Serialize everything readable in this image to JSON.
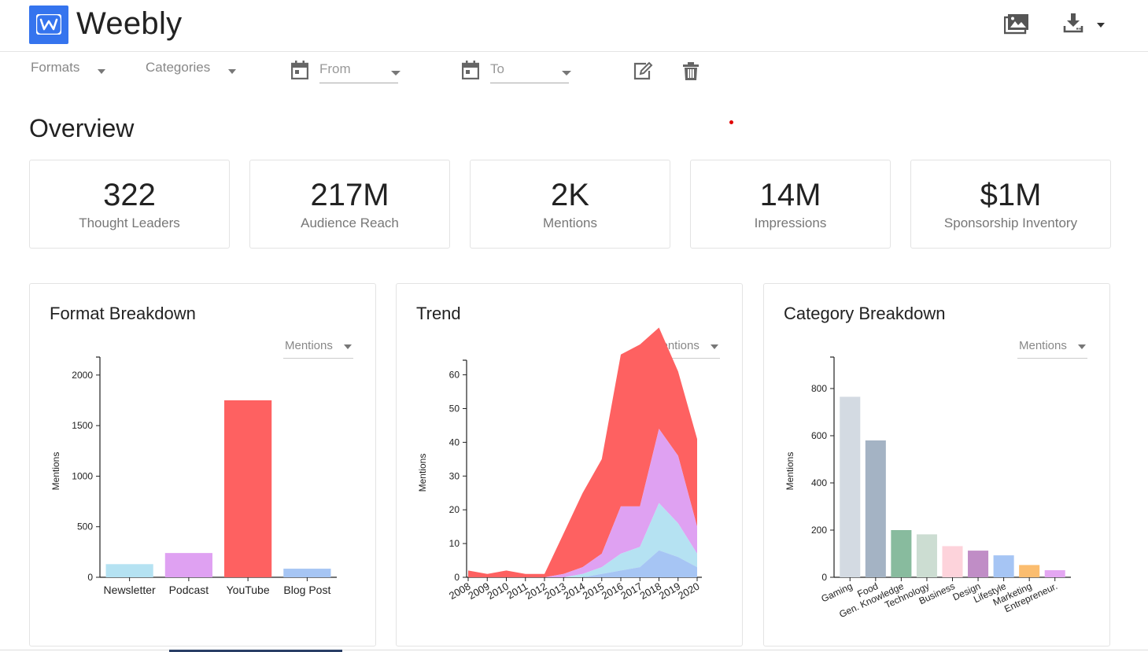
{
  "app": {
    "brand": "Weebly",
    "logo_letter": "W"
  },
  "header_icons": [
    "images-icon",
    "download-icon",
    "caret-down-icon"
  ],
  "filters": {
    "formats_label": "Formats",
    "categories_label": "Categories",
    "from_placeholder": "From",
    "to_placeholder": "To"
  },
  "overview": {
    "title": "Overview",
    "stats": [
      {
        "value": "322",
        "label": "Thought Leaders"
      },
      {
        "value": "217M",
        "label": "Audience Reach"
      },
      {
        "value": "2K",
        "label": "Mentions"
      },
      {
        "value": "14M",
        "label": "Impressions"
      },
      {
        "value": "$1M",
        "label": "Sponsorship Inventory"
      }
    ]
  },
  "panels": {
    "format": {
      "title": "Format Breakdown",
      "metric": "Mentions"
    },
    "trend": {
      "title": "Trend",
      "metric": "Mentions"
    },
    "category": {
      "title": "Category Breakdown",
      "metric": "Mentions"
    }
  },
  "chart_data": [
    {
      "type": "bar",
      "categories": [
        "Newsletter",
        "Podcast",
        "YouTube",
        "Blog Post"
      ],
      "values": [
        130,
        240,
        1750,
        85
      ],
      "colors": [
        "#b5e2f2",
        "#dfa1f2",
        "#fe6161",
        "#a6c5f4"
      ],
      "ylabel": "Mentions",
      "yticks": [
        0,
        500,
        1000,
        1500,
        2000
      ],
      "ylim": [
        0,
        2100
      ]
    },
    {
      "type": "area",
      "x": [
        "2008",
        "2009",
        "2010",
        "2011",
        "2012",
        "2013",
        "2014",
        "2015",
        "2016",
        "2017",
        "2018",
        "2019",
        "2020"
      ],
      "ylabel": "Mentions",
      "yticks": [
        0,
        10,
        20,
        30,
        40,
        50,
        60
      ],
      "ylim": [
        0,
        62
      ],
      "series": [
        {
          "color": "#fe6161",
          "values": [
            2,
            1,
            2,
            1,
            1,
            12,
            22,
            28,
            45,
            48,
            30,
            25,
            26
          ]
        },
        {
          "color": "#dfa1f2",
          "values": [
            0,
            0,
            0,
            0,
            0,
            1,
            2,
            4,
            14,
            12,
            22,
            20,
            8
          ]
        },
        {
          "color": "#b5e2f2",
          "values": [
            0,
            0,
            0,
            0,
            0,
            0,
            1,
            2,
            5,
            6,
            14,
            10,
            4
          ]
        },
        {
          "color": "#a6c5f4",
          "values": [
            0,
            0,
            0,
            0,
            0,
            0,
            0,
            1,
            2,
            3,
            8,
            6,
            3
          ]
        }
      ]
    },
    {
      "type": "bar",
      "categories": [
        "Gaming",
        "Food",
        "Gen. Knowledge",
        "Technology",
        "Business",
        "Design",
        "Lifestyle",
        "Marketing",
        "Entrepreneur."
      ],
      "values": [
        765,
        580,
        200,
        182,
        132,
        113,
        93,
        52,
        30
      ],
      "colors": [
        "#d3dae2",
        "#a4b3c4",
        "#88bb9e",
        "#ccddd2",
        "#fdd3db",
        "#c08dc6",
        "#a6c5f4",
        "#fbbd6f",
        "#e4a7f2"
      ],
      "ylabel": "Mentions",
      "yticks": [
        0,
        200,
        400,
        600,
        800
      ],
      "ylim": [
        0,
        900
      ]
    }
  ]
}
